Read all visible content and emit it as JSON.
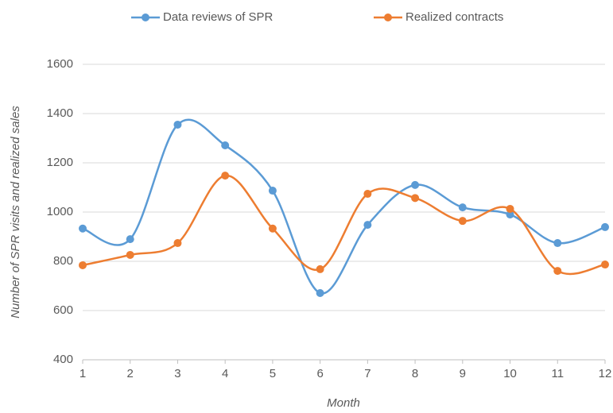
{
  "chart_data": {
    "type": "line",
    "x": [
      1,
      2,
      3,
      4,
      5,
      6,
      7,
      8,
      9,
      10,
      11,
      12
    ],
    "series": [
      {
        "name": "Data reviews of SPR",
        "color": "#5b9bd5",
        "values": [
          933,
          890,
          1355,
          1271,
          1087,
          671,
          948,
          1110,
          1019,
          990,
          874,
          939
        ]
      },
      {
        "name": "Realized contracts",
        "color": "#ed7d31",
        "values": [
          784,
          826,
          874,
          1148,
          933,
          768,
          1074,
          1057,
          964,
          1013,
          761,
          787
        ]
      }
    ],
    "xlim": [
      1,
      12
    ],
    "xticks": [
      1,
      2,
      3,
      4,
      5,
      6,
      7,
      8,
      9,
      10,
      11,
      12
    ],
    "ylim": [
      400,
      1600
    ],
    "yticks": [
      400,
      600,
      800,
      1000,
      1200,
      1400,
      1600
    ],
    "x_label": "Month",
    "y_label": "Number of SPR visits and realized sales",
    "grid": true,
    "legend": "top",
    "smooth": true
  }
}
